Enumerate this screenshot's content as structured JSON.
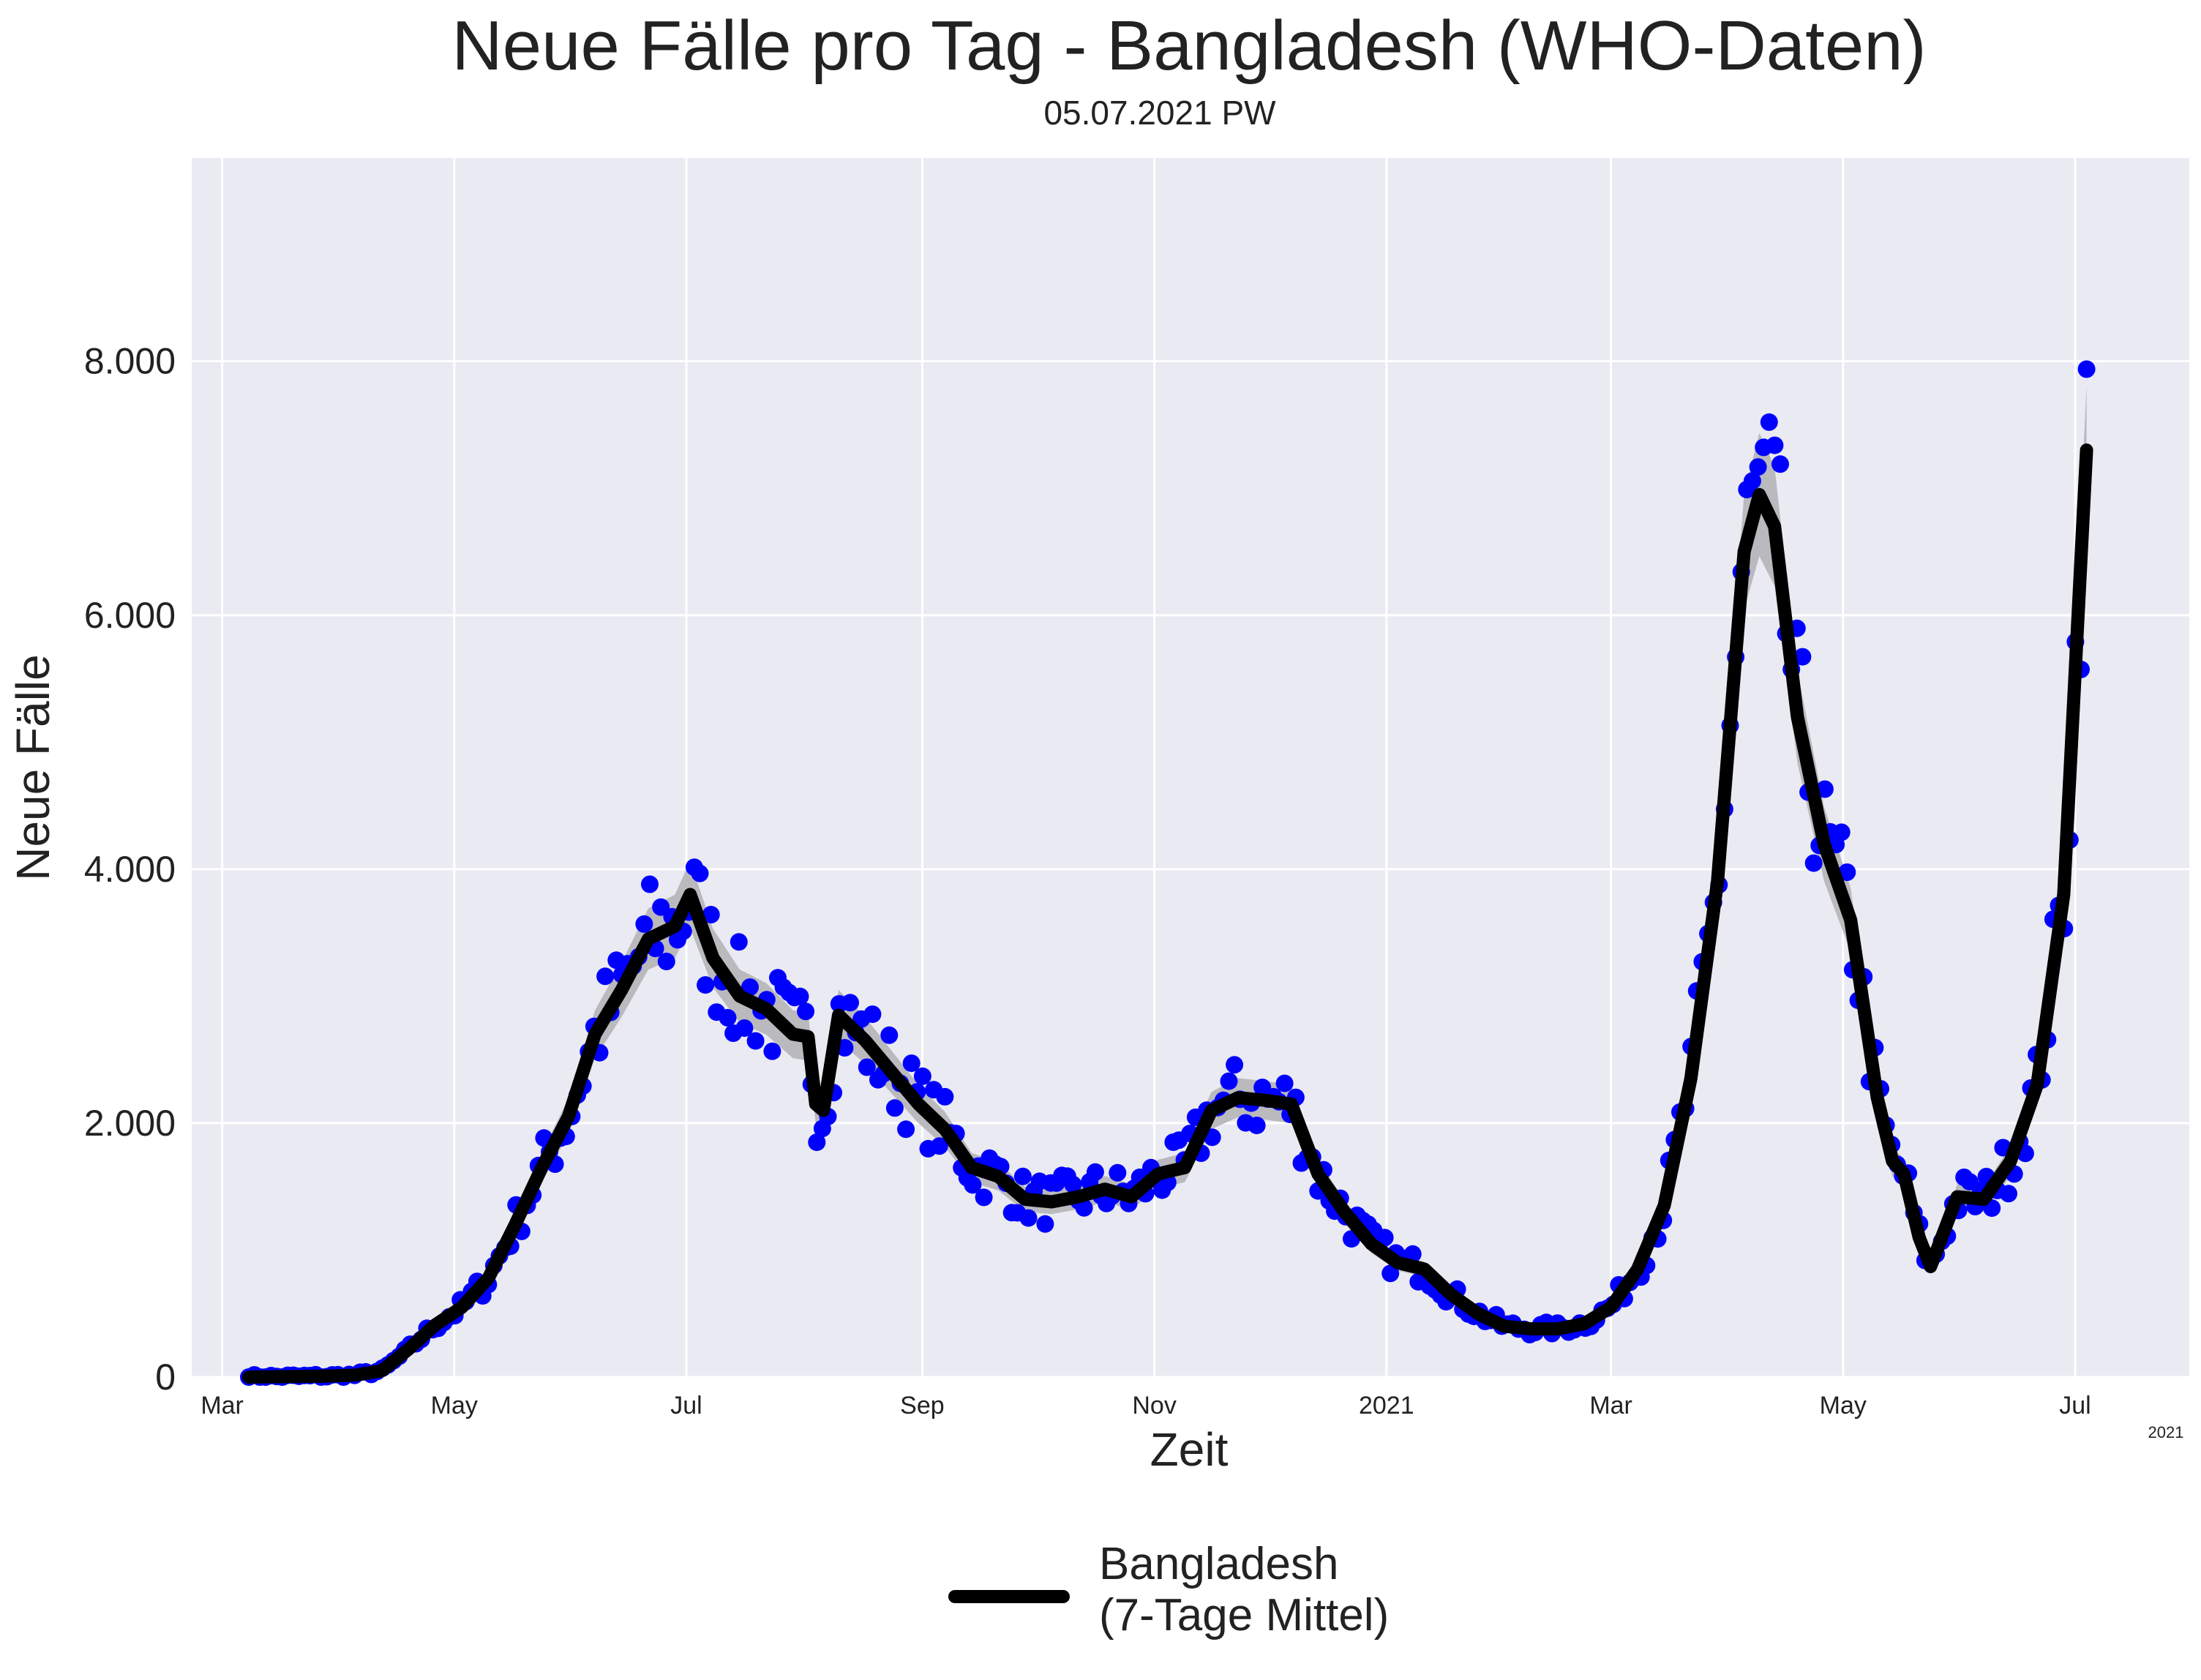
{
  "chart_data": {
    "type": "line",
    "title": "Neue Fälle pro Tag - Bangladesh (WHO-Daten)",
    "subtitle": "05.07.2021 PW",
    "xlabel": "Zeit",
    "ylabel": "Neue Fälle",
    "x_offset_label": "2021",
    "x_range": [
      "2020-02-22",
      "2021-07-31"
    ],
    "ylim": [
      0,
      9600
    ],
    "grid": true,
    "legend_position": "bottom-center",
    "colors": {
      "plot_background": "#eaeaf2",
      "grid": "#ffffff",
      "line": "#000000",
      "points": "#0000ff",
      "band": "#b4b4b8"
    },
    "y_ticks": [
      {
        "value": 0,
        "label": "0"
      },
      {
        "value": 2000,
        "label": "2.000"
      },
      {
        "value": 4000,
        "label": "4.000"
      },
      {
        "value": 6000,
        "label": "6.000"
      },
      {
        "value": 8000,
        "label": "8.000"
      }
    ],
    "x_ticks": [
      {
        "date": "2020-03-01",
        "label": "Mar"
      },
      {
        "date": "2020-05-01",
        "label": "May"
      },
      {
        "date": "2020-07-01",
        "label": "Jul"
      },
      {
        "date": "2020-09-01",
        "label": "Sep"
      },
      {
        "date": "2020-11-01",
        "label": "Nov"
      },
      {
        "date": "2021-01-01",
        "label": "2021"
      },
      {
        "date": "2021-03-01",
        "label": "Mar"
      },
      {
        "date": "2021-05-01",
        "label": "May"
      },
      {
        "date": "2021-07-01",
        "label": "Jul"
      }
    ],
    "series": [
      {
        "name": "Bangladesh\n(7-Tage Mittel)",
        "kind": "7-day mean (line with shaded band, daily values as points)",
        "x": [
          "2020-03-08",
          "2020-03-15",
          "2020-03-22",
          "2020-03-29",
          "2020-04-05",
          "2020-04-12",
          "2020-04-19",
          "2020-04-26",
          "2020-05-03",
          "2020-05-10",
          "2020-05-17",
          "2020-05-24",
          "2020-05-31",
          "2020-06-07",
          "2020-06-14",
          "2020-06-21",
          "2020-06-28",
          "2020-07-02",
          "2020-07-08",
          "2020-07-15",
          "2020-07-22",
          "2020-07-29",
          "2020-08-02",
          "2020-08-04",
          "2020-08-06",
          "2020-08-10",
          "2020-08-17",
          "2020-08-24",
          "2020-08-31",
          "2020-09-07",
          "2020-09-14",
          "2020-09-21",
          "2020-09-28",
          "2020-10-05",
          "2020-10-12",
          "2020-10-19",
          "2020-10-26",
          "2020-11-02",
          "2020-11-09",
          "2020-11-16",
          "2020-11-23",
          "2020-11-30",
          "2020-12-07",
          "2020-12-14",
          "2020-12-21",
          "2020-12-28",
          "2021-01-04",
          "2021-01-11",
          "2021-01-18",
          "2021-01-25",
          "2021-02-01",
          "2021-02-08",
          "2021-02-15",
          "2021-02-22",
          "2021-03-01",
          "2021-03-08",
          "2021-03-15",
          "2021-03-22",
          "2021-03-29",
          "2021-04-05",
          "2021-04-09",
          "2021-04-13",
          "2021-04-19",
          "2021-04-26",
          "2021-05-03",
          "2021-05-10",
          "2021-05-14",
          "2021-05-17",
          "2021-05-21",
          "2021-05-24",
          "2021-05-31",
          "2021-06-07",
          "2021-06-14",
          "2021-06-21",
          "2021-06-28",
          "2021-07-04"
        ],
        "values": [
          0,
          3,
          5,
          8,
          15,
          50,
          220,
          410,
          550,
          780,
          1200,
          1650,
          2050,
          2700,
          3050,
          3450,
          3550,
          3800,
          3300,
          3000,
          2900,
          2700,
          2680,
          2150,
          2100,
          2850,
          2650,
          2400,
          2150,
          1950,
          1650,
          1580,
          1400,
          1380,
          1420,
          1480,
          1420,
          1600,
          1650,
          2100,
          2200,
          2180,
          2150,
          1600,
          1300,
          1050,
          900,
          850,
          650,
          500,
          400,
          380,
          380,
          420,
          550,
          850,
          1350,
          2350,
          3900,
          6500,
          6950,
          6700,
          5200,
          4200,
          3600,
          2200,
          1700,
          1600,
          1100,
          870,
          1420,
          1400,
          1700,
          2300,
          3800,
          7300
        ]
      }
    ]
  }
}
